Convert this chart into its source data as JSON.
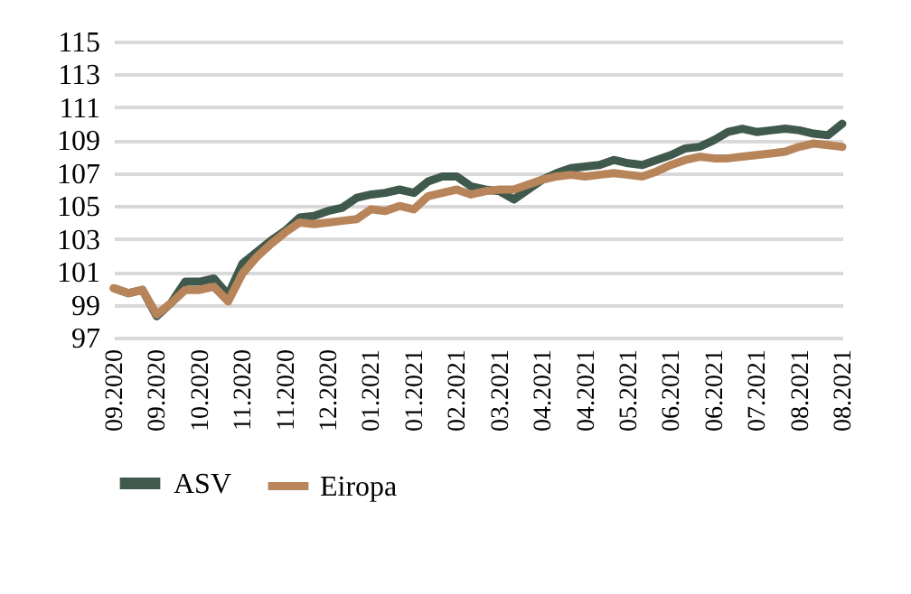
{
  "chart_data": {
    "type": "line",
    "categories": [
      "09.2020",
      null,
      null,
      "09.2020",
      null,
      null,
      "10.2020",
      null,
      null,
      "11.2020",
      null,
      null,
      "11.2020",
      null,
      null,
      "12.2020",
      null,
      null,
      "01.2021",
      null,
      null,
      "01.2021",
      null,
      null,
      "02.2021",
      null,
      null,
      "03.2021",
      null,
      null,
      "04.2021",
      null,
      null,
      "04.2021",
      null,
      null,
      "05.2021",
      null,
      null,
      "06.2021",
      null,
      null,
      "06.2021",
      null,
      null,
      "07.2021",
      null,
      null,
      "08.2021",
      null,
      null,
      "08.2021"
    ],
    "series": [
      {
        "name": "ASV",
        "color": "#3f5a4d",
        "values": [
          100.0,
          99.7,
          99.9,
          98.3,
          99.1,
          100.4,
          100.4,
          100.6,
          99.6,
          101.5,
          102.2,
          102.9,
          103.5,
          104.3,
          104.4,
          104.7,
          104.9,
          105.5,
          105.7,
          105.8,
          106.0,
          105.8,
          106.5,
          106.8,
          106.8,
          106.2,
          106.0,
          105.9,
          105.4,
          106.0,
          106.6,
          107.0,
          107.3,
          107.4,
          107.5,
          107.8,
          107.6,
          107.5,
          107.8,
          108.1,
          108.5,
          108.6,
          109.0,
          109.5,
          109.7,
          109.5,
          109.6,
          109.7,
          109.6,
          109.4,
          109.3,
          110.0
        ]
      },
      {
        "name": "Eiropa",
        "color": "#b8845a",
        "values": [
          100.0,
          99.7,
          99.9,
          98.4,
          99.1,
          99.9,
          99.9,
          100.1,
          99.2,
          100.9,
          101.9,
          102.7,
          103.4,
          104.0,
          103.9,
          104.0,
          104.1,
          104.2,
          104.8,
          104.7,
          105.0,
          104.8,
          105.6,
          105.8,
          106.0,
          105.7,
          105.9,
          106.0,
          106.0,
          106.3,
          106.6,
          106.8,
          106.9,
          106.8,
          106.9,
          107.0,
          106.9,
          106.8,
          107.1,
          107.5,
          107.8,
          108.0,
          107.9,
          107.9,
          108.0,
          108.1,
          108.2,
          108.3,
          108.6,
          108.8,
          108.7,
          108.6
        ]
      }
    ],
    "ylim": [
      97,
      115
    ],
    "yticks": [
      97,
      99,
      101,
      103,
      105,
      107,
      109,
      111,
      113,
      115
    ],
    "grid": "y",
    "legend": "bottom",
    "marker": "none",
    "line_style": "solid"
  }
}
